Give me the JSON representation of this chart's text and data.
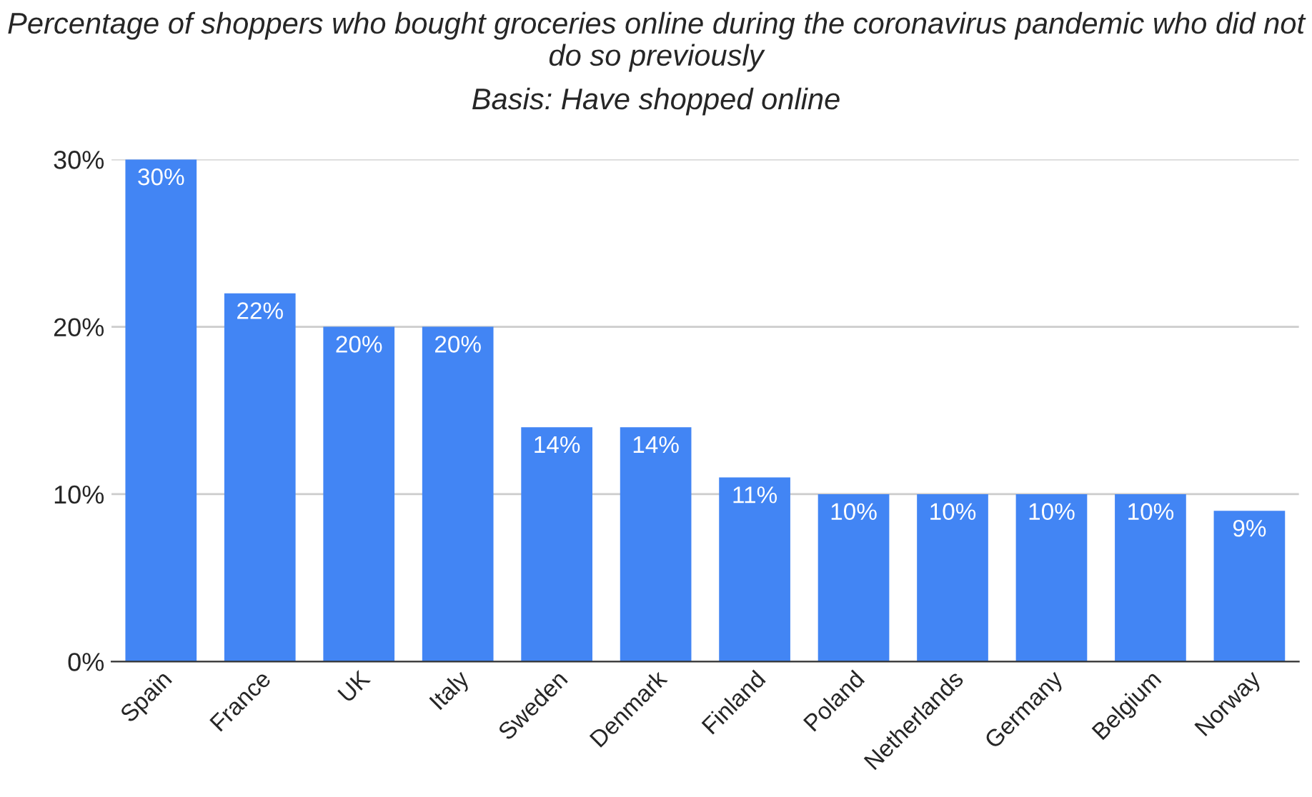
{
  "chart_data": {
    "type": "bar",
    "title": "Percentage of shoppers who bought groceries online during the coronavirus pandemic who did not do so previously",
    "subtitle": "Basis: Have shopped online",
    "categories": [
      "Spain",
      "France",
      "UK",
      "Italy",
      "Sweden",
      "Denmark",
      "Finland",
      "Poland",
      "Netherlands",
      "Germany",
      "Belgium",
      "Norway"
    ],
    "values": [
      30,
      22,
      20,
      20,
      14,
      14,
      11,
      10,
      10,
      10,
      10,
      9
    ],
    "value_labels": [
      "30%",
      "22%",
      "20%",
      "20%",
      "14%",
      "14%",
      "11%",
      "10%",
      "10%",
      "10%",
      "10%",
      "9%"
    ],
    "color": "#4285f4",
    "ylim": [
      0,
      30
    ],
    "yticks": [
      {
        "value": 0,
        "label": "0%"
      },
      {
        "value": 10,
        "label": "10%"
      },
      {
        "value": 20,
        "label": "20%"
      },
      {
        "value": 30,
        "label": "30%"
      }
    ],
    "grid": "y"
  }
}
